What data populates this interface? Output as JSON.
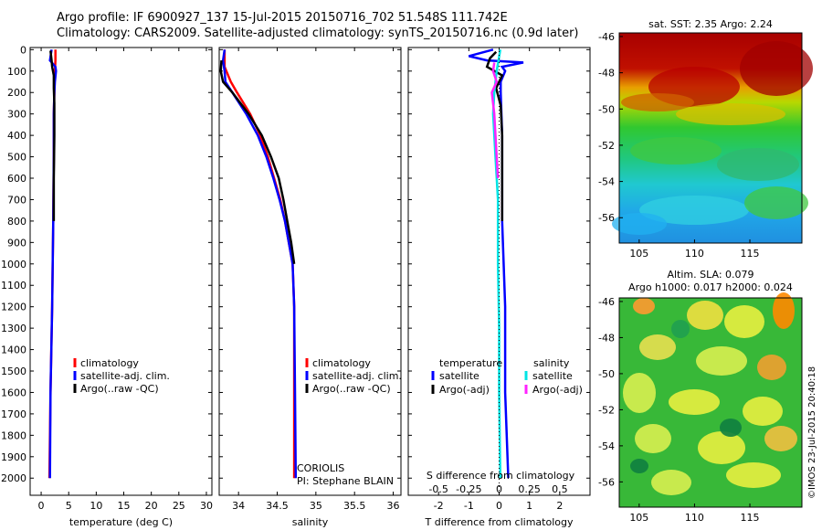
{
  "titles": {
    "line1": "Argo profile: IF 6900927_137 15-Jul-2015 20150716_702 51.548S 111.742E",
    "line2": "Climatology: CARS2009. Satellite-adjusted climatology: synTS_20150716.nc (0.9d later)"
  },
  "colors": {
    "climatology": "#ff0000",
    "satellite": "#0000ff",
    "argo": "#000000",
    "salinity_sat": "#00e5e5",
    "salinity_argo": "#ff22ff"
  },
  "depth_ticks": [
    0,
    100,
    200,
    300,
    400,
    500,
    600,
    700,
    800,
    900,
    1000,
    1100,
    1200,
    1300,
    1400,
    1500,
    1600,
    1700,
    1800,
    1900,
    2000
  ],
  "chart_data": [
    {
      "id": "temperature",
      "type": "line",
      "xlabel": "temperature (deg C)",
      "ylabel": "",
      "xlim": [
        -2,
        31
      ],
      "ylim": [
        2080,
        -10
      ],
      "xticks": [
        0,
        5,
        10,
        15,
        20,
        25,
        30
      ],
      "legend": [
        "climatology",
        "satellite-adj. clim.",
        "Argo(..raw -QC)"
      ],
      "series": [
        {
          "name": "climatology",
          "color": "red",
          "depth": [
            0,
            50,
            100,
            150,
            200,
            300,
            500,
            800,
            1200,
            1600,
            2000
          ],
          "values": [
            2.6,
            2.6,
            2.5,
            2.4,
            2.4,
            2.3,
            2.3,
            2.2,
            2.0,
            1.7,
            1.5
          ]
        },
        {
          "name": "satellite-adj. clim.",
          "color": "blue",
          "depth": [
            0,
            50,
            80,
            100,
            150,
            200,
            300,
            500,
            800,
            1200,
            1600,
            2000
          ],
          "values": [
            1.9,
            1.6,
            2.6,
            2.7,
            2.5,
            2.4,
            2.3,
            2.3,
            2.2,
            2.0,
            1.7,
            1.6
          ]
        },
        {
          "name": "Argo(..raw -QC)",
          "color": "black",
          "depth": [
            5,
            50,
            80,
            120,
            180,
            250,
            400,
            600,
            800
          ],
          "values": [
            1.7,
            1.9,
            2.0,
            2.3,
            2.3,
            2.4,
            2.4,
            2.3,
            2.3
          ]
        }
      ]
    },
    {
      "id": "salinity",
      "type": "line",
      "xlabel": "salinity",
      "ylabel": "",
      "xlim": [
        33.75,
        36.1
      ],
      "ylim": [
        2080,
        -10
      ],
      "xticks": [
        34,
        34.5,
        35,
        35.5,
        36
      ],
      "xticklabels": [
        "34",
        "34.5",
        "35",
        "35.5",
        "36"
      ],
      "legend": [
        "climatology",
        "satellite-adj. clim.",
        "Argo(..raw -QC)"
      ],
      "annotation": [
        "CORIOLIS",
        "PI: Stephane BLAIN"
      ],
      "series": [
        {
          "name": "climatology",
          "color": "red",
          "depth": [
            0,
            80,
            150,
            200,
            300,
            400,
            500,
            600,
            700,
            800,
            900,
            1000,
            1200,
            1600,
            2000
          ],
          "values": [
            33.82,
            33.82,
            33.9,
            33.98,
            34.15,
            34.28,
            34.38,
            34.46,
            34.54,
            34.6,
            34.65,
            34.7,
            34.72,
            34.72,
            34.72
          ]
        },
        {
          "name": "satellite-adj. clim.",
          "color": "blue",
          "depth": [
            0,
            50,
            100,
            150,
            200,
            300,
            400,
            500,
            600,
            700,
            800,
            900,
            1000,
            1200,
            1600,
            2000
          ],
          "values": [
            33.82,
            33.8,
            33.82,
            33.83,
            33.92,
            34.1,
            34.25,
            34.36,
            34.45,
            34.53,
            34.6,
            34.65,
            34.7,
            34.72,
            34.73,
            34.74
          ]
        },
        {
          "name": "Argo(..raw -QC)",
          "color": "black",
          "depth": [
            50,
            100,
            150,
            200,
            300,
            400,
            500,
            600,
            700,
            800,
            900,
            1000
          ],
          "values": [
            33.78,
            33.77,
            33.8,
            33.92,
            34.13,
            34.3,
            34.42,
            34.52,
            34.58,
            34.63,
            34.68,
            34.72
          ]
        }
      ]
    },
    {
      "id": "differences",
      "type": "line",
      "xlabel": "T difference from climatology",
      "top_label": "S difference from climatology",
      "xlim": [
        -3,
        3
      ],
      "ylim": [
        2080,
        -10
      ],
      "xticks": [
        -2,
        -1,
        0,
        1,
        2
      ],
      "top_xticks": [
        -0.5,
        -0.25,
        0,
        0.25,
        0.5
      ],
      "top_xticklabels": [
        "-0.5",
        "-0.25",
        "0",
        "0.25",
        "0.5"
      ],
      "legend_temperature_title": "temperature",
      "legend_salinity_title": "salinity",
      "legend": [
        {
          "group": "temperature",
          "name": "satellite",
          "color": "blue"
        },
        {
          "group": "temperature",
          "name": "Argo(-adj)",
          "color": "black"
        },
        {
          "group": "salinity",
          "name": "satellite",
          "color": "cyan"
        },
        {
          "group": "salinity",
          "name": "Argo(-adj)",
          "color": "magenta"
        }
      ],
      "series": [
        {
          "name": "T satellite",
          "color": "blue",
          "depth": [
            0,
            30,
            50,
            60,
            80,
            100,
            150,
            200,
            400,
            800,
            1200,
            1600,
            2000
          ],
          "values": [
            -0.2,
            -1.0,
            -0.4,
            0.8,
            0.1,
            0.2,
            0.05,
            0.05,
            0.1,
            0.1,
            0.2,
            0.2,
            0.3
          ]
        },
        {
          "name": "T Argo(-adj)",
          "color": "black",
          "depth": [
            10,
            40,
            80,
            120,
            180,
            260,
            400,
            600,
            800
          ],
          "values": [
            -0.1,
            -0.3,
            -0.4,
            0.1,
            -0.1,
            0.05,
            0.1,
            0.1,
            0.1
          ]
        },
        {
          "name": "S satellite",
          "color": "cyan",
          "depth": [
            0,
            100,
            200,
            300,
            400,
            500,
            700,
            1000,
            1300,
            1600,
            2000
          ],
          "values": [
            0.01,
            -0.02,
            -0.04,
            -0.05,
            -0.04,
            -0.03,
            -0.01,
            -0.01,
            0,
            0,
            0.01
          ]
        },
        {
          "name": "S Argo(-adj)",
          "color": "magenta",
          "depth": [
            60,
            100,
            150,
            200,
            300,
            400,
            500,
            600
          ],
          "values": [
            -0.04,
            -0.05,
            -0.02,
            -0.06,
            -0.04,
            -0.03,
            -0.02,
            -0.01
          ]
        }
      ]
    },
    {
      "id": "sst_map",
      "type": "heatmap",
      "title": "sat. SST: 2.35 Argo: 2.24",
      "xticks": [
        105,
        110,
        115
      ],
      "yticks": [
        -46,
        -48,
        -50,
        -52,
        -54,
        -56
      ],
      "xlim": [
        103.2,
        119.7
      ],
      "ylim": [
        -57.4,
        -45.8
      ]
    },
    {
      "id": "sla_map",
      "type": "heatmap",
      "title": "Altim. SLA: 0.079",
      "subtitle": "Argo h1000: 0.017 h2000: 0.024",
      "xticks": [
        105,
        110,
        115
      ],
      "yticks": [
        -46,
        -48,
        -50,
        -52,
        -54,
        -56
      ],
      "xlim": [
        103.2,
        119.7
      ],
      "ylim": [
        -57.4,
        -45.8
      ]
    }
  ],
  "credit": "©IMOS 23-Jul-2015 20:40:18"
}
